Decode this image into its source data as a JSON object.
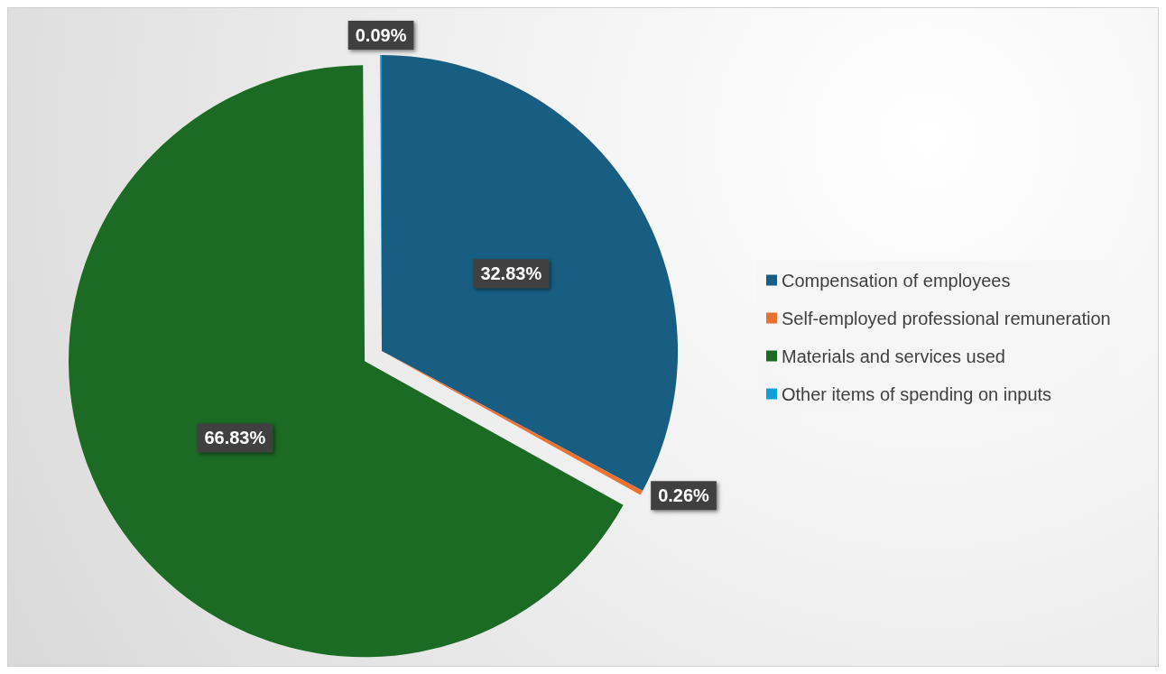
{
  "chart_data": {
    "type": "pie",
    "categories": [
      "Compensation of employees",
      "Self-employed professional remuneration",
      "Materials and services used",
      "Other items of spending on inputs"
    ],
    "values": [
      32.83,
      0.26,
      66.83,
      0.09
    ],
    "colors": [
      "#175e82",
      "#e97132",
      "#1b6b24",
      "#0f9ed5"
    ],
    "value_labels": [
      "32.83%",
      "0.26%",
      "66.83%",
      "0.09%"
    ],
    "legend": "right"
  }
}
